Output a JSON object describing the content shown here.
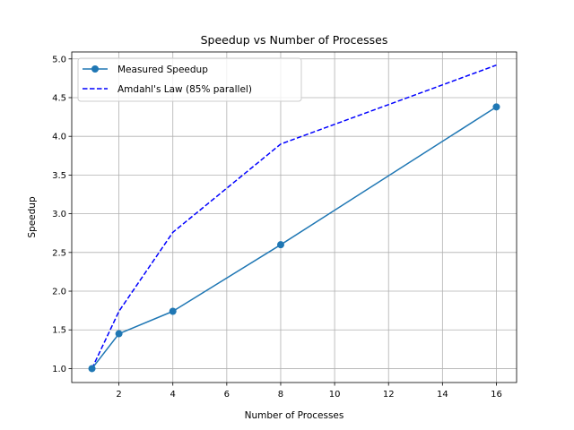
{
  "chart_data": {
    "type": "line",
    "title": "Speedup vs Number of Processes",
    "xlabel": "Number of Processes",
    "ylabel": "Speedup",
    "xlim": [
      0.25,
      16.75
    ],
    "ylim": [
      0.82,
      5.09
    ],
    "xticks": [
      2,
      4,
      6,
      8,
      10,
      12,
      14,
      16
    ],
    "yticks": [
      1.0,
      1.5,
      2.0,
      2.5,
      3.0,
      3.5,
      4.0,
      4.5,
      5.0
    ],
    "xtick_labels": [
      "2",
      "4",
      "6",
      "8",
      "10",
      "12",
      "14",
      "16"
    ],
    "ytick_labels": [
      "1.0",
      "1.5",
      "2.0",
      "2.5",
      "3.0",
      "3.5",
      "4.0",
      "4.5",
      "5.0"
    ],
    "grid": true,
    "legend_position": "upper-left",
    "series": [
      {
        "name": "Measured Speedup",
        "x": [
          1,
          2,
          4,
          8,
          16
        ],
        "values": [
          1.0,
          1.45,
          1.74,
          2.6,
          4.38
        ],
        "color": "#1f77b4",
        "style": "solid",
        "marker": "circle"
      },
      {
        "name": "Amdahl's Law (85% parallel)",
        "x": [
          1,
          2,
          4,
          8,
          16
        ],
        "values": [
          1.0,
          1.74,
          2.76,
          3.9,
          4.92
        ],
        "color": "#0000ff",
        "style": "dashed",
        "marker": "none"
      }
    ]
  }
}
